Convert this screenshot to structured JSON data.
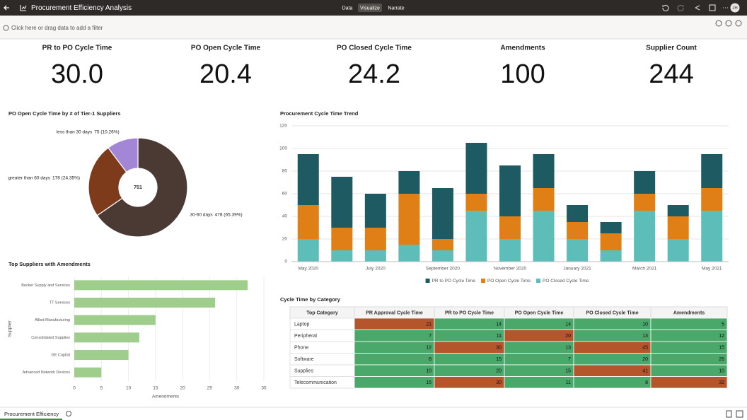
{
  "header": {
    "title": "Procurement Efficiency Analysis",
    "tabs": [
      "Data",
      "Visualize",
      "Narrate"
    ],
    "active_tab": 1,
    "user": "JH"
  },
  "filter_bar": {
    "placeholder": "Click here or drag data to add a filter"
  },
  "kpis": [
    {
      "label": "PR to PO Cycle Time",
      "value": 30,
      "value_label": "30.0"
    },
    {
      "label": "PO Open Cycle Time",
      "value": 20.4
    },
    {
      "label": "PO Closed Cycle Time",
      "value": 24.2
    },
    {
      "label": "Amendments",
      "value": 100
    },
    {
      "label": "Supplier Count",
      "value": 244
    }
  ],
  "chart_data": [
    {
      "type": "donut",
      "title": "PO Open Cycle Time by # of Tier-1 Suppliers",
      "categories": [
        "30-60 days",
        "greater than 60 days",
        "less than 30 days"
      ],
      "values": [
        478,
        178,
        75
      ],
      "value_labels": [
        "478 (65.39%)",
        "178 (24.35%)",
        "75 (10.26%)"
      ],
      "colors": [
        "#4b3a33",
        "#7d3b1c",
        "#a486d6"
      ],
      "total": 751
    },
    {
      "type": "stacked-bar",
      "title": "Procurement Cycle Time Trend",
      "categories": [
        "May 2020",
        null,
        "July 2020",
        null,
        "September 2020",
        null,
        "November 2020",
        null,
        "January 2021",
        null,
        "March 2021",
        null,
        "May 2021"
      ],
      "series": [
        {
          "name": "PR to PO Cycle Time",
          "color": "#1e5a62",
          "values": [
            45,
            45,
            30,
            20,
            45,
            45,
            45,
            30,
            15,
            10,
            20,
            10,
            30
          ]
        },
        {
          "name": "PO Open Cycle Time",
          "color": "#e07f16",
          "values": [
            30,
            20,
            20,
            45,
            10,
            15,
            20,
            20,
            15,
            15,
            15,
            20,
            20
          ]
        },
        {
          "name": "PO Closed Cycle Time",
          "color": "#5dbdb9",
          "values": [
            20,
            10,
            10,
            15,
            10,
            45,
            20,
            45,
            20,
            10,
            45,
            20,
            45
          ]
        }
      ],
      "ylim": [
        0,
        120
      ],
      "yticks": [
        0,
        20,
        40,
        60,
        80,
        100,
        120
      ],
      "grid": true,
      "legend": "bottom"
    },
    {
      "type": "hbar",
      "title": "Top Suppliers with Amendments",
      "categories": [
        "Becker Supply and Services",
        "TT Services",
        "Allied Manufacturing",
        "Consolidated Supplies",
        "GE Capital",
        "Advanced Network Devices"
      ],
      "values": [
        32,
        26,
        15,
        12,
        10,
        5
      ],
      "color": "#9fcd8c",
      "xlim": [
        0,
        35
      ],
      "xticks": [
        0,
        5,
        10,
        15,
        20,
        25,
        30,
        35
      ],
      "x_label": "Amendments",
      "y_label": "Supplier",
      "grid": true
    }
  ],
  "table": {
    "title": "Cycle Time by Category",
    "columns": [
      "Top Category",
      "PR Approval Cycle Time",
      "PR to PO Cycle Time",
      "PO Open Cycle Time",
      "PO Closed Cycle Time",
      "Amendments"
    ],
    "rows": [
      [
        "Laptop",
        21,
        14,
        14,
        10,
        5
      ],
      [
        "Peripheral",
        7,
        11,
        20,
        13,
        12
      ],
      [
        "Phone",
        12,
        30,
        13,
        45,
        15
      ],
      [
        "Software",
        8,
        15,
        7,
        20,
        26
      ],
      [
        "Supplies",
        10,
        20,
        15,
        41,
        10
      ],
      [
        "Telecommunication",
        15,
        30,
        11,
        8,
        32
      ]
    ],
    "cell_colors": [
      [
        "#b4552c",
        "#4aa86b",
        "#4aa86b",
        "#4aa86b",
        "#4aa86b"
      ],
      [
        "#4aa86b",
        "#4aa86b",
        "#b4552c",
        "#4aa86b",
        "#4aa86b"
      ],
      [
        "#4aa86b",
        "#b4552c",
        "#4aa86b",
        "#b4552c",
        "#4aa86b"
      ],
      [
        "#4aa86b",
        "#4aa86b",
        "#4aa86b",
        "#4aa86b",
        "#4aa86b"
      ],
      [
        "#4aa86b",
        "#4aa86b",
        "#4aa86b",
        "#b4552c",
        "#4aa86b"
      ],
      [
        "#4aa86b",
        "#b4552c",
        "#4aa86b",
        "#4aa86b",
        "#b4552c"
      ]
    ]
  },
  "footer": {
    "tab": "Procurement Efficiency"
  }
}
